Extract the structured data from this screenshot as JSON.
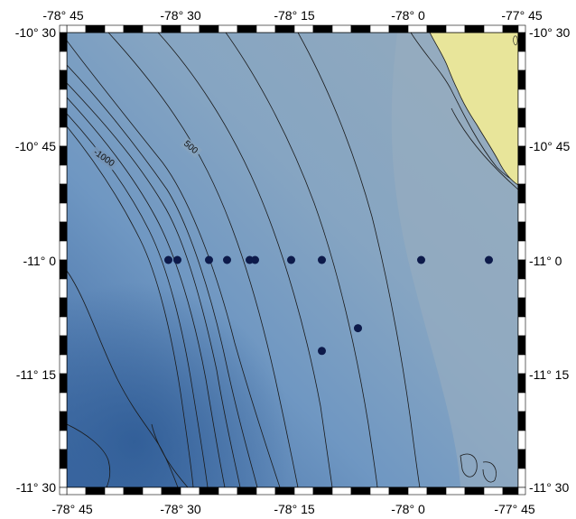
{
  "map": {
    "lon_ticks": [
      "-78° 45",
      "-78° 30",
      "-78° 15",
      "-78° 0",
      "-77° 45"
    ],
    "lat_ticks": [
      "-10° 30",
      "-10° 45",
      "-11° 0",
      "-11° 15",
      "-11° 30"
    ],
    "contour_labels": [
      "-1000",
      "500"
    ],
    "extent": {
      "lon": [
        -78.75,
        -77.75
      ],
      "lat": [
        -11.5,
        -10.5
      ]
    },
    "stations": [
      {
        "lon": -78.525,
        "lat": -11.0
      },
      {
        "lon": -78.505,
        "lat": -11.0
      },
      {
        "lon": -78.435,
        "lat": -11.0
      },
      {
        "lon": -78.395,
        "lat": -11.0
      },
      {
        "lon": -78.345,
        "lat": -11.0
      },
      {
        "lon": -78.333,
        "lat": -11.0
      },
      {
        "lon": -78.253,
        "lat": -11.0
      },
      {
        "lon": -78.185,
        "lat": -11.0
      },
      {
        "lon": -77.965,
        "lat": -11.0
      },
      {
        "lon": -77.815,
        "lat": -11.0
      },
      {
        "lon": -78.105,
        "lat": -11.15
      },
      {
        "lon": -78.185,
        "lat": -11.2
      }
    ],
    "colors": {
      "ocean_deep": "#3e6aa4",
      "ocean_mid": "#6f97c2",
      "ocean_shelf": "#8fa8bd",
      "land": "#e8e59a",
      "station": "#0d1a4a",
      "contour": "#1a1a1a"
    }
  }
}
